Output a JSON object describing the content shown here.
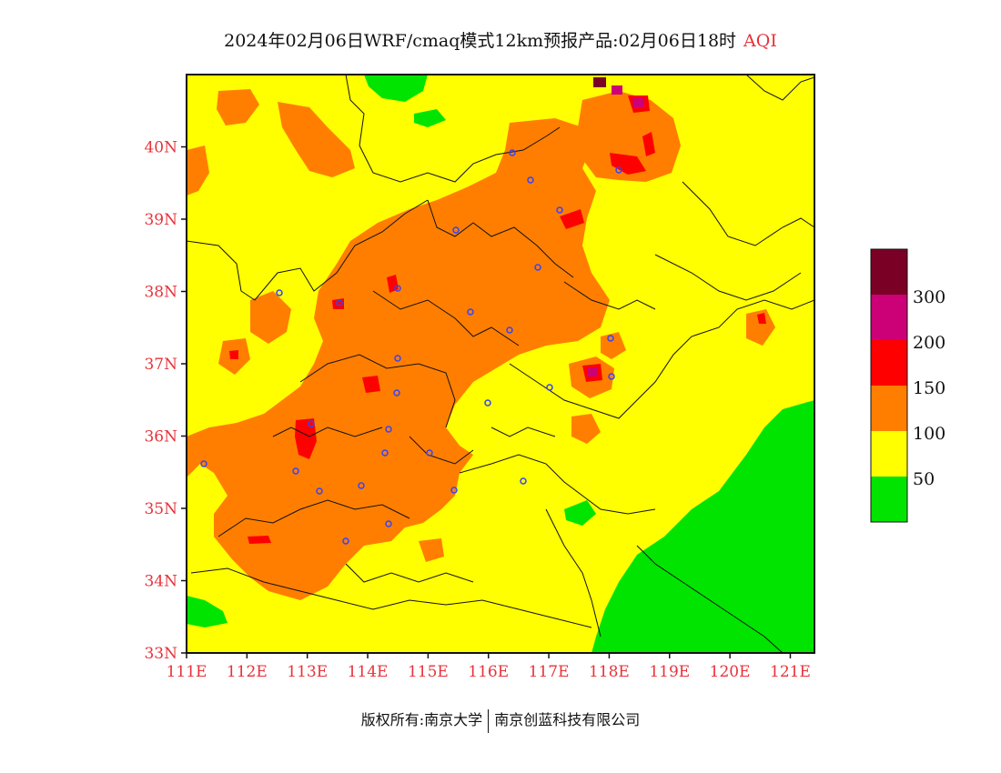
{
  "title": {
    "main": "2024年02月06日WRF/cmaq模式12km预报产品:02月06日18时",
    "variable": "AQI"
  },
  "map": {
    "lat_ticks": [
      {
        "label": "40N",
        "lat": 40
      },
      {
        "label": "39N",
        "lat": 39
      },
      {
        "label": "38N",
        "lat": 38
      },
      {
        "label": "37N",
        "lat": 37
      },
      {
        "label": "36N",
        "lat": 36
      },
      {
        "label": "35N",
        "lat": 35
      },
      {
        "label": "34N",
        "lat": 34
      },
      {
        "label": "33N",
        "lat": 33
      }
    ],
    "lon_ticks": [
      {
        "label": "111E",
        "lon": 111
      },
      {
        "label": "112E",
        "lon": 112
      },
      {
        "label": "113E",
        "lon": 113
      },
      {
        "label": "114E",
        "lon": 114
      },
      {
        "label": "115E",
        "lon": 115
      },
      {
        "label": "116E",
        "lon": 116
      },
      {
        "label": "117E",
        "lon": 117
      },
      {
        "label": "118E",
        "lon": 118
      },
      {
        "label": "119E",
        "lon": 119
      },
      {
        "label": "120E",
        "lon": 120
      },
      {
        "label": "121E",
        "lon": 121
      }
    ],
    "extent": {
      "lon_min": 111,
      "lon_max": 121.4,
      "lat_min": 33,
      "lat_max": 41
    }
  },
  "legend": {
    "labels": [
      "300",
      "200",
      "150",
      "100",
      "50"
    ],
    "colors": {
      "level_300_plus": "#7a0026",
      "level_200_300": "#cc0077",
      "level_150_200": "#ff0000",
      "level_100_150": "#ff7e00",
      "level_50_100": "#ffff00",
      "level_0_50": "#00e400"
    }
  },
  "footer": {
    "left": "版权所有:南京大学",
    "right": "南京创蓝科技有限公司"
  }
}
